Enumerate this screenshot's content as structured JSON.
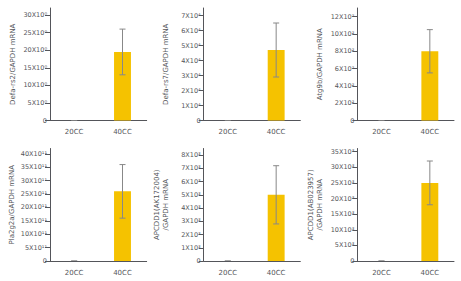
{
  "chart_data": [
    {
      "type": "bar",
      "ylabel": "Defa-rs2/GAPDH mRNA",
      "categories": [
        "20CC",
        "40CC"
      ],
      "values": [
        0.0,
        19.5
      ],
      "errors": [
        0.0,
        6.5
      ],
      "color": "#F5C200",
      "ylim": [
        0,
        32
      ],
      "yticks": [
        0,
        {
          "value": 5,
          "label": "5X10⁰"
        },
        {
          "value": 10,
          "label": "10X10⁰"
        },
        {
          "value": 15,
          "label": "15X10⁰"
        },
        {
          "value": 20,
          "label": "20X10⁰"
        },
        {
          "value": 25,
          "label": "25X10⁰"
        },
        {
          "value": 30,
          "label": "30X10⁰"
        }
      ],
      "grid": false
    },
    {
      "type": "bar",
      "ylabel": "Defa-rs7/GAPDH mRNA",
      "categories": [
        "20CC",
        "40CC"
      ],
      "values": [
        0.0,
        4.7
      ],
      "errors": [
        0.0,
        1.8
      ],
      "color": "#F5C200",
      "ylim": [
        0,
        7.5
      ],
      "yticks": [
        0,
        {
          "value": 1,
          "label": "1X10⁴"
        },
        {
          "value": 2,
          "label": "2X10⁴"
        },
        {
          "value": 3,
          "label": "3X10⁴"
        },
        {
          "value": 4,
          "label": "4X10⁴"
        },
        {
          "value": 5,
          "label": "5X10⁴"
        },
        {
          "value": 6,
          "label": "6X10⁴"
        },
        {
          "value": 7,
          "label": "7X10⁴"
        }
      ],
      "grid": false
    },
    {
      "type": "bar",
      "ylabel": "Atg9b/GAPDH mRNA",
      "categories": [
        "20CC",
        "40CC"
      ],
      "values": [
        0.0,
        8.0
      ],
      "errors": [
        0.0,
        2.5
      ],
      "color": "#F5C200",
      "ylim": [
        0,
        13
      ],
      "yticks": [
        0,
        {
          "value": 2,
          "label": "2X10²"
        },
        {
          "value": 4,
          "label": "4X10²"
        },
        {
          "value": 6,
          "label": "6X10²"
        },
        {
          "value": 8,
          "label": "8X10²"
        },
        {
          "value": 10,
          "label": "10X10²"
        },
        {
          "value": 12,
          "label": "12X10²"
        }
      ],
      "grid": false
    },
    {
      "type": "bar",
      "ylabel": "Pla2g2a/GAPDH mRNA",
      "categories": [
        "20CC",
        "40CC"
      ],
      "values": [
        0.0,
        26.0
      ],
      "errors": [
        0.0,
        10.0
      ],
      "color": "#F5C200",
      "ylim": [
        0,
        42
      ],
      "yticks": [
        0,
        {
          "value": 5,
          "label": "5X10¹¹"
        },
        {
          "value": 10,
          "label": "10X10¹¹"
        },
        {
          "value": 15,
          "label": "15X10¹¹"
        },
        {
          "value": 20,
          "label": "20X10¹¹"
        },
        {
          "value": 25,
          "label": "25X10¹¹"
        },
        {
          "value": 30,
          "label": "30X10¹¹"
        },
        {
          "value": 35,
          "label": "35X10¹¹"
        },
        {
          "value": 40,
          "label": "40X10¹¹"
        }
      ],
      "grid": false
    },
    {
      "type": "bar",
      "ylabel": "APCDD1(AK172004)\n/GAPDH mRNA",
      "categories": [
        "20CC",
        "40CC"
      ],
      "values": [
        0.0,
        5.0
      ],
      "errors": [
        0.0,
        2.2
      ],
      "color": "#F5C200",
      "ylim": [
        0,
        8.5
      ],
      "yticks": [
        0,
        {
          "value": 1,
          "label": "1X10³"
        },
        {
          "value": 2,
          "label": "2X10³"
        },
        {
          "value": 3,
          "label": "3X10³"
        },
        {
          "value": 4,
          "label": "4X10³"
        },
        {
          "value": 5,
          "label": "5X10³"
        },
        {
          "value": 6,
          "label": "6X10³"
        },
        {
          "value": 7,
          "label": "7X10³"
        },
        {
          "value": 8,
          "label": "8X10³"
        }
      ],
      "grid": false
    },
    {
      "type": "bar",
      "ylabel": "APCDD1(AB023957)\n/GAPDH mRNA",
      "categories": [
        "20CC",
        "40CC"
      ],
      "values": [
        0.0,
        25.0
      ],
      "errors": [
        0.0,
        7.0
      ],
      "color": "#F5C200",
      "ylim": [
        0,
        36
      ],
      "yticks": [
        0,
        {
          "value": 5,
          "label": "5X10³"
        },
        {
          "value": 10,
          "label": "10X10³"
        },
        {
          "value": 15,
          "label": "15X10³"
        },
        {
          "value": 20,
          "label": "20X10³"
        },
        {
          "value": 25,
          "label": "25X10³"
        },
        {
          "value": 30,
          "label": "30X10³"
        },
        {
          "value": 35,
          "label": "35X10³"
        }
      ],
      "grid": false
    }
  ]
}
